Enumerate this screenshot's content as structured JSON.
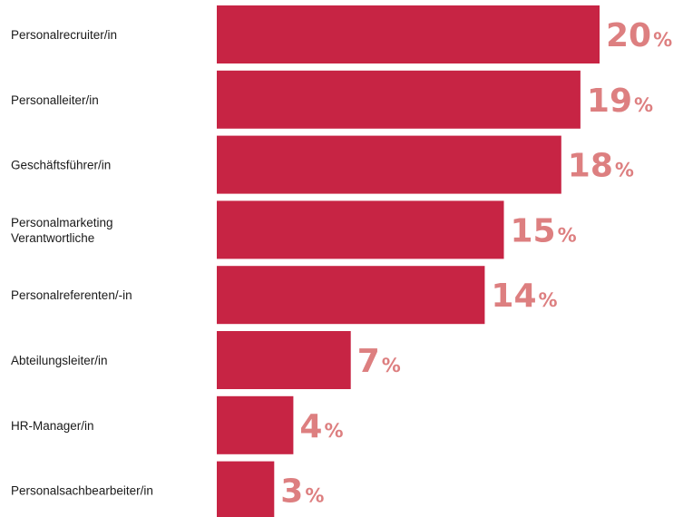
{
  "chart_data": {
    "type": "bar",
    "orientation": "horizontal",
    "categories": [
      "Personalrecruiter/in",
      "Personalleiter/in",
      "Geschäftsführer/in",
      "Personalmarketing\nVerantwortliche",
      "Personalreferenten/-in",
      "Abteilungsleiter/in",
      "HR-Manager/in",
      "Personalsachbearbeiter/in"
    ],
    "values": [
      20,
      19,
      18,
      15,
      14,
      7,
      4,
      3
    ],
    "value_suffix": "%",
    "title": "",
    "xlabel": "",
    "ylabel": "",
    "xlim": [
      0,
      20
    ],
    "grid": false,
    "legend": "none",
    "colors": {
      "bar": "#c72444",
      "value_label": "#dd7f80",
      "category_label": "#1a1a1a"
    }
  }
}
